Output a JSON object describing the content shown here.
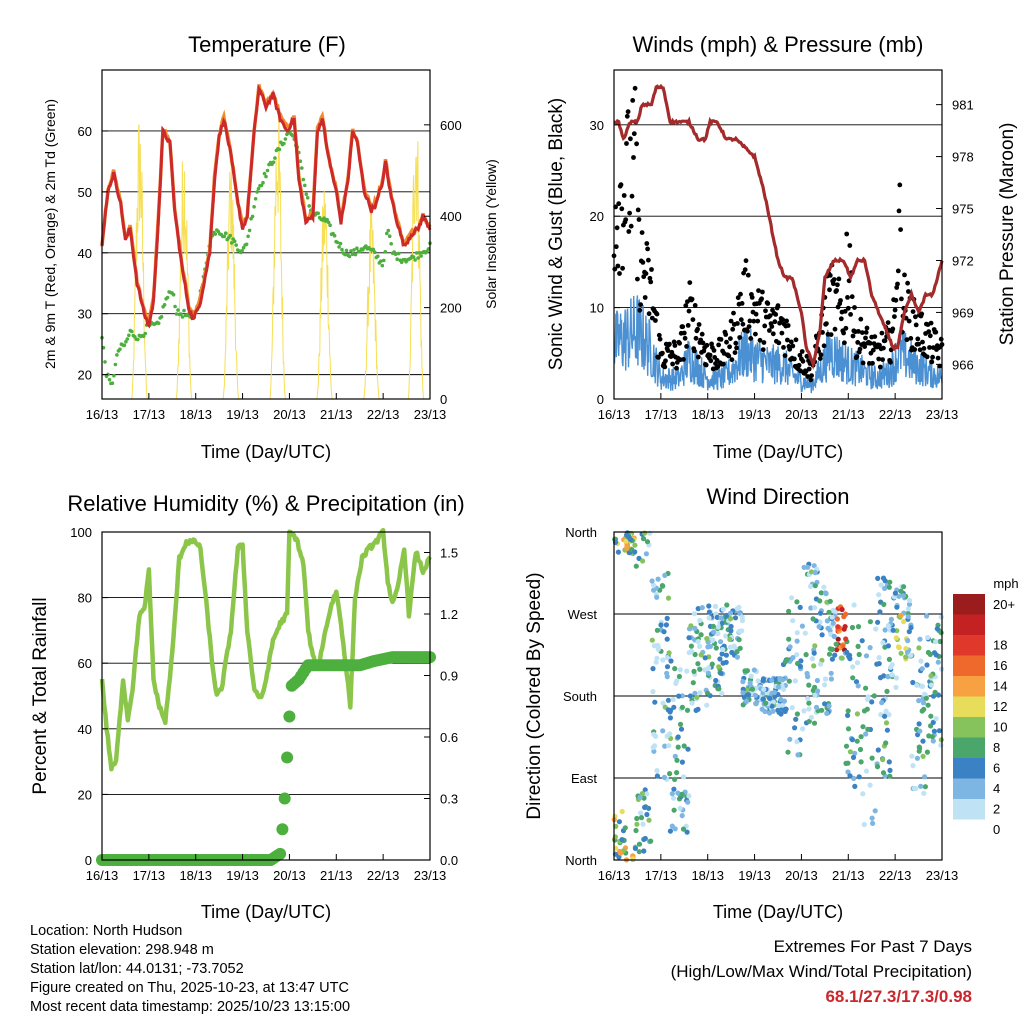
{
  "temperature": {
    "title": "Temperature (F)",
    "xlabel": "Time (Day/UTC)",
    "ylabel_left": "2m & 9m T (Red, Orange) & 2m Td (Green)",
    "ylabel_right": "Solar Insolation (Yellow)",
    "x_ticks": [
      "16/13",
      "17/13",
      "18/13",
      "19/13",
      "20/13",
      "21/13",
      "22/13",
      "23/13"
    ],
    "y_ticks": [
      "20",
      "30",
      "40",
      "50",
      "60"
    ],
    "y2_ticks": [
      "0",
      "200",
      "400",
      "600"
    ],
    "y_range": [
      16,
      70
    ],
    "y2_range": [
      0,
      720
    ],
    "series": [
      {
        "name": "2m T",
        "color": "#cc2a2a",
        "points": [
          [
            0,
            41
          ],
          [
            0.12,
            50
          ],
          [
            0.25,
            53
          ],
          [
            0.4,
            48
          ],
          [
            0.5,
            42
          ],
          [
            0.6,
            44
          ],
          [
            0.75,
            35
          ],
          [
            0.9,
            30
          ],
          [
            1.0,
            28
          ],
          [
            1.1,
            32
          ],
          [
            1.2,
            45
          ],
          [
            1.3,
            60
          ],
          [
            1.45,
            58
          ],
          [
            1.55,
            47
          ],
          [
            1.7,
            38
          ],
          [
            1.85,
            31
          ],
          [
            1.95,
            29
          ],
          [
            2.1,
            32
          ],
          [
            2.3,
            40
          ],
          [
            2.4,
            52
          ],
          [
            2.5,
            59
          ],
          [
            2.6,
            62
          ],
          [
            2.75,
            56
          ],
          [
            2.9,
            48
          ],
          [
            3.0,
            44
          ],
          [
            3.1,
            46
          ],
          [
            3.25,
            60
          ],
          [
            3.35,
            67
          ],
          [
            3.5,
            64
          ],
          [
            3.65,
            66
          ],
          [
            3.8,
            62
          ],
          [
            3.95,
            60
          ],
          [
            4.1,
            62
          ],
          [
            4.2,
            52
          ],
          [
            4.35,
            45
          ],
          [
            4.5,
            46
          ],
          [
            4.6,
            60
          ],
          [
            4.7,
            62
          ],
          [
            4.85,
            55
          ],
          [
            5.0,
            50
          ],
          [
            5.1,
            45
          ],
          [
            5.25,
            52
          ],
          [
            5.35,
            60
          ],
          [
            5.45,
            58
          ],
          [
            5.6,
            50
          ],
          [
            5.75,
            47
          ],
          [
            5.85,
            48
          ],
          [
            6.0,
            52
          ],
          [
            6.05,
            55
          ],
          [
            6.15,
            50
          ],
          [
            6.3,
            45
          ],
          [
            6.45,
            41
          ],
          [
            6.6,
            43
          ],
          [
            6.75,
            44
          ],
          [
            6.85,
            46
          ],
          [
            7.0,
            44
          ]
        ]
      },
      {
        "name": "9m T",
        "color": "#f08a2c",
        "points": [
          [
            0,
            41
          ],
          [
            0.12,
            50
          ],
          [
            0.25,
            53.3
          ],
          [
            0.4,
            48.3
          ],
          [
            0.5,
            42.3
          ],
          [
            0.6,
            44.3
          ],
          [
            0.75,
            35.3
          ],
          [
            0.9,
            30.5
          ],
          [
            1.0,
            28.5
          ],
          [
            1.1,
            32.5
          ],
          [
            1.2,
            45.3
          ],
          [
            1.3,
            60.3
          ],
          [
            1.45,
            58.3
          ],
          [
            1.55,
            47.3
          ],
          [
            1.7,
            38.5
          ],
          [
            1.85,
            31.5
          ],
          [
            1.95,
            29.5
          ],
          [
            2.1,
            32.5
          ],
          [
            2.3,
            40.3
          ],
          [
            2.4,
            52.3
          ],
          [
            2.5,
            59.3
          ],
          [
            2.6,
            62.3
          ],
          [
            2.75,
            56.3
          ],
          [
            2.9,
            48.3
          ],
          [
            3.0,
            44.3
          ],
          [
            3.1,
            46.3
          ],
          [
            3.25,
            60.3
          ],
          [
            3.35,
            67.3
          ],
          [
            3.5,
            64.5
          ],
          [
            3.65,
            66.3
          ],
          [
            3.8,
            62.5
          ],
          [
            3.95,
            60.5
          ],
          [
            4.1,
            62.3
          ],
          [
            4.2,
            52.5
          ],
          [
            4.35,
            45.5
          ],
          [
            4.5,
            46.5
          ],
          [
            4.6,
            60.3
          ],
          [
            4.7,
            62.3
          ],
          [
            4.85,
            55.3
          ],
          [
            5.0,
            50.5
          ],
          [
            5.1,
            45.5
          ],
          [
            5.25,
            52.3
          ],
          [
            5.35,
            60.3
          ],
          [
            5.45,
            58.3
          ],
          [
            5.6,
            50.3
          ],
          [
            5.75,
            47.5
          ],
          [
            5.85,
            48.5
          ],
          [
            6.0,
            52.3
          ],
          [
            6.05,
            55.3
          ],
          [
            6.15,
            50.3
          ],
          [
            6.3,
            45.3
          ],
          [
            6.45,
            41.5
          ],
          [
            6.6,
            43.3
          ],
          [
            6.75,
            44.3
          ],
          [
            6.85,
            46.3
          ],
          [
            7.0,
            44.3
          ]
        ]
      },
      {
        "name": "2m Td",
        "color": "#4caf3e",
        "points": [
          [
            0,
            26
          ],
          [
            0.1,
            20
          ],
          [
            0.2,
            18
          ],
          [
            0.35,
            24
          ],
          [
            0.5,
            25
          ],
          [
            0.6,
            27
          ],
          [
            0.8,
            26
          ],
          [
            1.0,
            28
          ],
          [
            1.2,
            28
          ],
          [
            1.35,
            32
          ],
          [
            1.5,
            34
          ],
          [
            1.6,
            30
          ],
          [
            1.75,
            30
          ],
          [
            1.9,
            29
          ],
          [
            2.0,
            30
          ],
          [
            2.15,
            35
          ],
          [
            2.3,
            42
          ],
          [
            2.45,
            44
          ],
          [
            2.6,
            43
          ],
          [
            2.8,
            42
          ],
          [
            3.0,
            40
          ],
          [
            3.1,
            42
          ],
          [
            3.3,
            50
          ],
          [
            3.5,
            53
          ],
          [
            3.7,
            56
          ],
          [
            3.85,
            58
          ],
          [
            4.0,
            60
          ],
          [
            4.15,
            58
          ],
          [
            4.3,
            52
          ],
          [
            4.45,
            47
          ],
          [
            4.6,
            46
          ],
          [
            4.8,
            45
          ],
          [
            5.0,
            42
          ],
          [
            5.2,
            40
          ],
          [
            5.4,
            40
          ],
          [
            5.6,
            41
          ],
          [
            5.8,
            40
          ],
          [
            6.0,
            38
          ],
          [
            6.1,
            44
          ],
          [
            6.2,
            40
          ],
          [
            6.4,
            39
          ],
          [
            6.6,
            39
          ],
          [
            6.8,
            40
          ],
          [
            7.0,
            41
          ]
        ]
      }
    ]
  },
  "winds": {
    "title": "Winds (mph) & Pressure (mb)",
    "xlabel": "Time (Day/UTC)",
    "ylabel_left": "Sonic Wind & Gust (Blue, Black)",
    "ylabel_right": "Station Pressure (Maroon)",
    "x_ticks": [
      "16/13",
      "17/13",
      "18/13",
      "19/13",
      "20/13",
      "21/13",
      "22/13",
      "23/13"
    ],
    "y_ticks": [
      "0",
      "10",
      "20",
      "30"
    ],
    "y2_ticks": [
      "966",
      "969",
      "972",
      "975",
      "978",
      "981"
    ],
    "y_range": [
      0,
      36
    ],
    "y2_range": [
      964,
      983
    ],
    "pressure": {
      "name": "Station Pressure",
      "color": "#a32b2b",
      "points": [
        [
          0,
          980
        ],
        [
          0.1,
          980
        ],
        [
          0.2,
          979
        ],
        [
          0.35,
          980
        ],
        [
          0.5,
          980
        ],
        [
          0.6,
          981
        ],
        [
          0.8,
          981
        ],
        [
          0.9,
          982
        ],
        [
          1.05,
          982
        ],
        [
          1.2,
          980
        ],
        [
          1.4,
          980
        ],
        [
          1.6,
          980
        ],
        [
          1.8,
          979
        ],
        [
          1.95,
          979
        ],
        [
          2.05,
          980
        ],
        [
          2.2,
          980
        ],
        [
          2.4,
          979
        ],
        [
          2.6,
          979
        ],
        [
          2.8,
          978.5
        ],
        [
          3.0,
          978
        ],
        [
          3.1,
          977
        ],
        [
          3.2,
          976
        ],
        [
          3.35,
          974
        ],
        [
          3.5,
          972
        ],
        [
          3.65,
          971
        ],
        [
          3.8,
          971
        ],
        [
          4.0,
          969
        ],
        [
          4.1,
          967
        ],
        [
          4.25,
          966
        ],
        [
          4.4,
          968
        ],
        [
          4.5,
          971
        ],
        [
          4.7,
          972
        ],
        [
          4.9,
          972
        ],
        [
          5.05,
          971
        ],
        [
          5.2,
          972
        ],
        [
          5.35,
          972
        ],
        [
          5.5,
          970
        ],
        [
          5.65,
          969
        ],
        [
          5.8,
          968
        ],
        [
          5.95,
          967
        ],
        [
          6.05,
          967
        ],
        [
          6.2,
          969
        ],
        [
          6.35,
          970
        ],
        [
          6.5,
          969
        ],
        [
          6.65,
          970
        ],
        [
          6.8,
          970
        ],
        [
          7.0,
          972
        ]
      ]
    },
    "wind_color": "#4a90d2",
    "gust_color": "#000000"
  },
  "humidity": {
    "title": "Relative Humidity (%) & Precipitation (in)",
    "xlabel": "Time (Day/UTC)",
    "ylabel_left": "Percent & Total Rainfall",
    "x_ticks": [
      "16/13",
      "17/13",
      "18/13",
      "19/13",
      "20/13",
      "21/13",
      "22/13",
      "23/13"
    ],
    "y_ticks": [
      "0",
      "20",
      "40",
      "60",
      "80",
      "100"
    ],
    "y2_ticks": [
      "0.0",
      "0.3",
      "0.6",
      "0.9",
      "1.2",
      "1.5"
    ],
    "y_range": [
      0,
      100
    ],
    "y2_range": [
      0,
      1.6
    ],
    "rh": {
      "name": "Relative Humidity",
      "color": "#8bc64a",
      "points": [
        [
          0,
          55
        ],
        [
          0.1,
          40
        ],
        [
          0.2,
          28
        ],
        [
          0.3,
          30
        ],
        [
          0.45,
          55
        ],
        [
          0.55,
          43
        ],
        [
          0.65,
          52
        ],
        [
          0.8,
          75
        ],
        [
          0.9,
          76
        ],
        [
          1.0,
          88
        ],
        [
          1.1,
          55
        ],
        [
          1.2,
          48
        ],
        [
          1.35,
          42
        ],
        [
          1.5,
          63
        ],
        [
          1.65,
          92
        ],
        [
          1.8,
          97
        ],
        [
          2.0,
          97
        ],
        [
          2.1,
          95
        ],
        [
          2.25,
          75
        ],
        [
          2.35,
          60
        ],
        [
          2.45,
          50
        ],
        [
          2.55,
          52
        ],
        [
          2.75,
          70
        ],
        [
          2.9,
          95
        ],
        [
          3.0,
          96
        ],
        [
          3.1,
          70
        ],
        [
          3.25,
          52
        ],
        [
          3.4,
          49
        ],
        [
          3.5,
          55
        ],
        [
          3.65,
          67
        ],
        [
          3.8,
          72
        ],
        [
          3.95,
          75
        ],
        [
          4.0,
          100
        ],
        [
          4.15,
          98
        ],
        [
          4.3,
          90
        ],
        [
          4.4,
          70
        ],
        [
          4.5,
          62
        ],
        [
          4.6,
          58
        ],
        [
          4.8,
          72
        ],
        [
          4.9,
          78
        ],
        [
          5.0,
          82
        ],
        [
          5.1,
          72
        ],
        [
          5.2,
          60
        ],
        [
          5.3,
          47
        ],
        [
          5.4,
          80
        ],
        [
          5.55,
          92
        ],
        [
          5.7,
          95
        ],
        [
          5.85,
          97
        ],
        [
          6.0,
          100
        ],
        [
          6.1,
          85
        ],
        [
          6.2,
          78
        ],
        [
          6.3,
          82
        ],
        [
          6.45,
          95
        ],
        [
          6.55,
          75
        ],
        [
          6.7,
          94
        ],
        [
          6.85,
          88
        ],
        [
          7.0,
          92
        ]
      ]
    },
    "precip": {
      "name": "Total Precipitation",
      "color": "#4caf3e",
      "points": [
        [
          0,
          0
        ],
        [
          3.6,
          0
        ],
        [
          3.8,
          0.03
        ],
        [
          3.85,
          0.15
        ],
        [
          3.9,
          0.3
        ],
        [
          3.95,
          0.5
        ],
        [
          4.0,
          0.7
        ],
        [
          4.05,
          0.85
        ],
        [
          4.2,
          0.88
        ],
        [
          4.4,
          0.95
        ],
        [
          5.0,
          0.95
        ],
        [
          5.5,
          0.95
        ],
        [
          5.8,
          0.97
        ],
        [
          6.2,
          0.99
        ],
        [
          7.0,
          0.99
        ]
      ]
    }
  },
  "direction": {
    "title": "Wind Direction",
    "xlabel": "Time (Day/UTC)",
    "ylabel_left": "Direction (Colored By Speed)",
    "x_ticks": [
      "16/13",
      "17/13",
      "18/13",
      "19/13",
      "20/13",
      "21/13",
      "22/13",
      "23/13"
    ],
    "y_ticks": [
      "North",
      "East",
      "South",
      "West",
      "North"
    ],
    "legend_title": "mph",
    "legend_labels": [
      "20+",
      "18",
      "16",
      "14",
      "12",
      "10",
      "8",
      "6",
      "4",
      "2",
      "0"
    ],
    "legend_colors": [
      "#9b1c1c",
      "#c42222",
      "#e0392b",
      "#f0692c",
      "#f7a142",
      "#e8dd5a",
      "#87c35c",
      "#4aa66a",
      "#3b82c4",
      "#7db6e3",
      "#bfe2f5"
    ]
  },
  "metadata": {
    "location": "Location: North Hudson",
    "elevation": "Station elevation: 298.948 m",
    "latlon": "Station lat/lon: 44.0131; -73.7052",
    "created": "Figure created on Thu, 2025-10-23, at 13:47 UTC",
    "recent": "Most recent data timestamp: 2025/10/23 13:15:00"
  },
  "extremes": {
    "line1": "Extremes For Past 7 Days",
    "line2": "(High/Low/Max Wind/Total Precipitation)",
    "values": "68.1/27.3/17.3/0.98"
  },
  "chart_data": [
    {
      "type": "line",
      "title": "Temperature (F)",
      "xlabel": "Time (Day/UTC)",
      "ylabel": "2m & 9m T (Red, Orange) & 2m Td (Green)",
      "ylim": [
        16,
        70
      ],
      "y2label": "Solar Insolation (Yellow)",
      "y2lim": [
        0,
        720
      ],
      "x": [
        "16/13",
        "17/13",
        "18/13",
        "19/13",
        "20/13",
        "21/13",
        "22/13",
        "23/13"
      ]
    },
    {
      "type": "line",
      "title": "Winds (mph) & Pressure (mb)",
      "xlabel": "Time (Day/UTC)",
      "ylabel": "Sonic Wind & Gust (Blue, Black)",
      "ylim": [
        0,
        36
      ],
      "y2label": "Station Pressure (Maroon)",
      "y2lim": [
        964,
        983
      ]
    },
    {
      "type": "line",
      "title": "Relative Humidity (%) & Precipitation (in)",
      "xlabel": "Time (Day/UTC)",
      "ylabel": "Percent & Total Rainfall",
      "ylim": [
        0,
        100
      ],
      "y2lim": [
        0,
        1.6
      ]
    },
    {
      "type": "scatter",
      "title": "Wind Direction",
      "xlabel": "Time (Day/UTC)",
      "ylabel": "Direction (Colored By Speed)"
    }
  ]
}
